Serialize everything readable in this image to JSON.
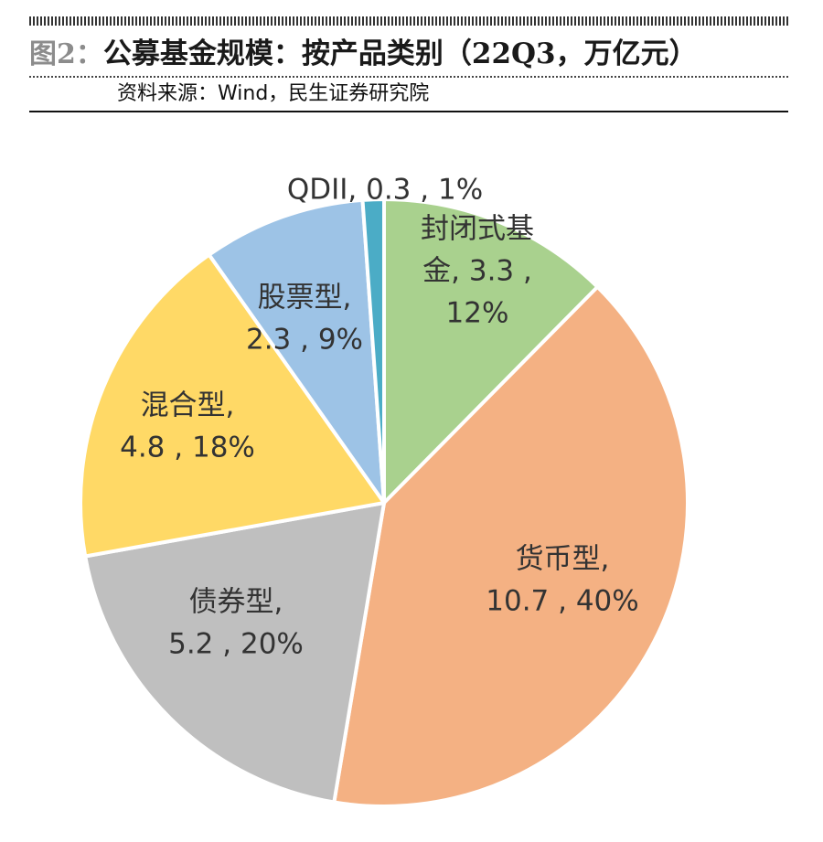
{
  "header": {
    "figure_label": "图2：",
    "title": "公募基金规模：按产品类别（22Q3，万亿元）",
    "source": "资料来源：Wind，民生证券研究院"
  },
  "chart_data": {
    "type": "pie",
    "slices": [
      {
        "name": "封闭式基金",
        "value": 3.3,
        "percent": "12%",
        "color": "#a9d18e",
        "label_lines": [
          "封闭式基",
          "金, 3.3 ,",
          "12%"
        ]
      },
      {
        "name": "货币型",
        "value": 10.7,
        "percent": "40%",
        "color": "#f4b183",
        "label_lines": [
          "货币型,",
          "10.7 , 40%"
        ]
      },
      {
        "name": "债券型",
        "value": 5.2,
        "percent": "20%",
        "color": "#bfbfbf",
        "label_lines": [
          "债券型,",
          "5.2 , 20%"
        ]
      },
      {
        "name": "混合型",
        "value": 4.8,
        "percent": "18%",
        "color": "#ffd966",
        "label_lines": [
          "混合型,",
          "4.8 , 18%"
        ]
      },
      {
        "name": "股票型",
        "value": 2.3,
        "percent": "9%",
        "color": "#9dc3e6",
        "label_lines": [
          "股票型,",
          "2.3 , 9%"
        ]
      },
      {
        "name": "QDII",
        "value": 0.3,
        "percent": "1%",
        "color": "#4bacc6",
        "label_lines": [
          "QDII, 0.3 , 1%"
        ]
      }
    ]
  }
}
